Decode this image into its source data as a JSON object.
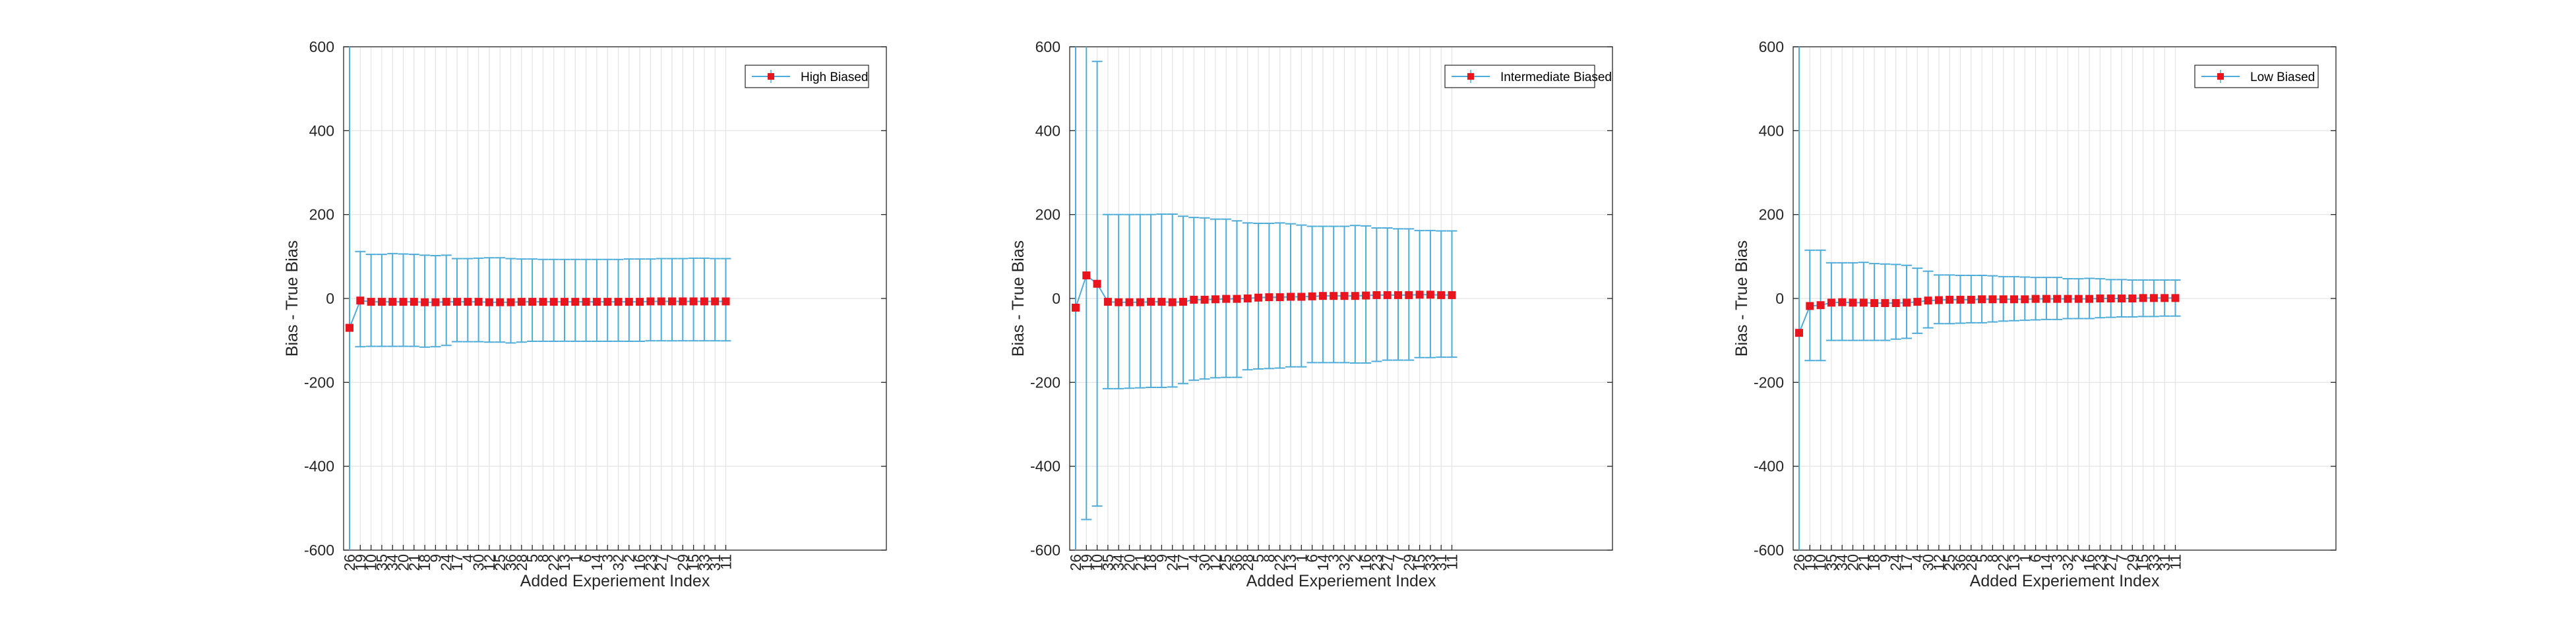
{
  "figure": {
    "colors": {
      "errorbar": "#4dacd8",
      "line": "#4dacd8",
      "marker": "#e8141e",
      "grid": "#e3e3e3",
      "axis": "#262626"
    }
  },
  "chart_data": [
    {
      "type": "line",
      "xlabel": "Added Experiement Index",
      "ylabel": "Bias - True Bias",
      "ylim": [
        -600,
        600
      ],
      "yticks": [
        600,
        400,
        200,
        0,
        -200,
        -400,
        -600
      ],
      "grid": true,
      "legend_location": "top-right",
      "categories": [
        "26",
        "19",
        "10",
        "35",
        "34",
        "20",
        "21",
        "18",
        "9",
        "24",
        "17",
        "4",
        "30",
        "12",
        "25",
        "36",
        "28",
        "5",
        "8",
        "22",
        "13",
        "1",
        "6",
        "14",
        "3",
        "32",
        "2",
        "16",
        "23",
        "27",
        "7",
        "29",
        "15",
        "33",
        "31",
        "11"
      ],
      "series": [
        {
          "name": "High Biased",
          "values": [
            -70,
            -5,
            -8,
            -8,
            -8,
            -8,
            -8,
            -9,
            -9,
            -8,
            -8,
            -8,
            -8,
            -9,
            -9,
            -9,
            -8,
            -8,
            -8,
            -8,
            -8,
            -8,
            -8,
            -8,
            -8,
            -8,
            -8,
            -8,
            -7,
            -7,
            -7,
            -7,
            -7,
            -7,
            -7,
            -7
          ],
          "error_upper": [
            600,
            112,
            105,
            105,
            107,
            106,
            105,
            103,
            102,
            103,
            95,
            95,
            96,
            97,
            97,
            95,
            94,
            94,
            93,
            93,
            93,
            93,
            93,
            93,
            93,
            93,
            94,
            94,
            94,
            95,
            95,
            95,
            96,
            96,
            95,
            95
          ],
          "error_lower": [
            -600,
            -115,
            -114,
            -114,
            -114,
            -114,
            -114,
            -116,
            -115,
            -112,
            -103,
            -103,
            -103,
            -104,
            -104,
            -106,
            -104,
            -102,
            -102,
            -102,
            -102,
            -102,
            -102,
            -102,
            -102,
            -102,
            -102,
            -102,
            -101,
            -101,
            -101,
            -101,
            -101,
            -101,
            -101,
            -101
          ]
        }
      ]
    },
    {
      "type": "line",
      "xlabel": "Added Experiement Index",
      "ylabel": "Bias - True Bias",
      "ylim": [
        -600,
        600
      ],
      "yticks": [
        600,
        400,
        200,
        0,
        -200,
        -400,
        -600
      ],
      "grid": true,
      "legend_location": "top-right",
      "categories": [
        "26",
        "19",
        "10",
        "35",
        "34",
        "20",
        "21",
        "18",
        "9",
        "24",
        "17",
        "4",
        "30",
        "12",
        "25",
        "36",
        "28",
        "5",
        "8",
        "22",
        "13",
        "1",
        "6",
        "14",
        "3",
        "32",
        "2",
        "16",
        "23",
        "27",
        "7",
        "29",
        "15",
        "33",
        "31",
        "11"
      ],
      "series": [
        {
          "name": "Intermediate Biased",
          "values": [
            -22,
            55,
            35,
            -8,
            -9,
            -9,
            -9,
            -8,
            -8,
            -9,
            -8,
            -3,
            -3,
            -2,
            -1,
            -1,
            0,
            2,
            3,
            3,
            4,
            4,
            5,
            6,
            6,
            6,
            6,
            7,
            8,
            8,
            8,
            8,
            9,
            9,
            8,
            8
          ],
          "error_upper": [
            600,
            600,
            565,
            200,
            200,
            200,
            200,
            200,
            201,
            201,
            196,
            193,
            192,
            189,
            189,
            185,
            180,
            179,
            179,
            180,
            178,
            175,
            172,
            172,
            172,
            172,
            174,
            173,
            168,
            168,
            166,
            166,
            162,
            162,
            161,
            161
          ],
          "error_lower": [
            -600,
            -527,
            -495,
            -215,
            -215,
            -214,
            -213,
            -212,
            -212,
            -211,
            -203,
            -195,
            -192,
            -189,
            -188,
            -188,
            -170,
            -168,
            -167,
            -166,
            -163,
            -163,
            -153,
            -153,
            -153,
            -153,
            -154,
            -154,
            -150,
            -147,
            -147,
            -147,
            -141,
            -141,
            -140,
            -140
          ]
        }
      ]
    },
    {
      "type": "line",
      "xlabel": "Added Experiement Index",
      "ylabel": "Bias - True Bias",
      "ylim": [
        -600,
        600
      ],
      "yticks": [
        600,
        400,
        200,
        0,
        -200,
        -400,
        -600
      ],
      "grid": true,
      "legend_location": "top-right",
      "categories": [
        "26",
        "19",
        "10",
        "35",
        "34",
        "20",
        "21",
        "18",
        "9",
        "24",
        "17",
        "4",
        "30",
        "12",
        "25",
        "36",
        "28",
        "5",
        "8",
        "22",
        "13",
        "1",
        "6",
        "14",
        "3",
        "32",
        "2",
        "16",
        "23",
        "27",
        "7",
        "29",
        "15",
        "33",
        "31",
        "11"
      ],
      "series": [
        {
          "name": "Low Biased",
          "values": [
            -82,
            -18,
            -16,
            -10,
            -9,
            -10,
            -10,
            -11,
            -11,
            -11,
            -10,
            -8,
            -5,
            -4,
            -3,
            -3,
            -3,
            -2,
            -2,
            -2,
            -2,
            -2,
            -1,
            -1,
            -1,
            -1,
            -1,
            -1,
            0,
            0,
            0,
            0,
            1,
            1,
            1,
            1
          ],
          "error_upper": [
            600,
            115,
            115,
            85,
            85,
            85,
            86,
            83,
            82,
            81,
            79,
            72,
            65,
            56,
            56,
            55,
            55,
            55,
            54,
            52,
            52,
            51,
            50,
            50,
            50,
            47,
            47,
            48,
            47,
            45,
            45,
            44,
            44,
            44,
            44,
            44
          ],
          "error_lower": [
            -600,
            -148,
            -148,
            -100,
            -100,
            -100,
            -100,
            -100,
            -100,
            -97,
            -95,
            -83,
            -70,
            -60,
            -60,
            -59,
            -58,
            -58,
            -56,
            -54,
            -53,
            -52,
            -51,
            -50,
            -50,
            -48,
            -48,
            -48,
            -46,
            -45,
            -44,
            -44,
            -43,
            -43,
            -42,
            -42
          ]
        }
      ]
    }
  ]
}
